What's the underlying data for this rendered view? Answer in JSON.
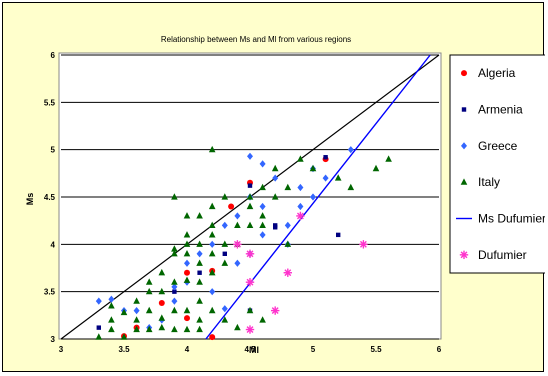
{
  "chart_data": {
    "type": "scatter",
    "title": "Relationship between Ms and Ml from various regions",
    "xlabel": "Ml",
    "ylabel": "Ms",
    "xlim": [
      3,
      6
    ],
    "ylim": [
      3,
      6
    ],
    "xticks": [
      "3",
      "3.5",
      "4",
      "4.5",
      "5",
      "5.5",
      "6"
    ],
    "yticks": [
      "3",
      "3.5",
      "4",
      "4.5",
      "5",
      "5.5",
      "6"
    ],
    "grid": "horizontal",
    "legend_position": "right",
    "series": [
      {
        "name": "Algeria",
        "marker": "circle",
        "color": "#ff0000",
        "points": [
          [
            3.5,
            3.03
          ],
          [
            3.6,
            3.12
          ],
          [
            3.8,
            3.38
          ],
          [
            4.0,
            3.22
          ],
          [
            4.0,
            3.7
          ],
          [
            4.2,
            3.72
          ],
          [
            4.2,
            3.02
          ],
          [
            4.35,
            4.4
          ],
          [
            4.5,
            4.65
          ],
          [
            5.1,
            4.9
          ]
        ]
      },
      {
        "name": "Armenia",
        "marker": "square",
        "color": "#000080",
        "points": [
          [
            3.3,
            3.12
          ],
          [
            4.1,
            3.7
          ],
          [
            4.3,
            3.9
          ],
          [
            4.7,
            4.18
          ],
          [
            4.7,
            4.2
          ],
          [
            4.5,
            4.62
          ],
          [
            5.2,
            4.1
          ],
          [
            5.1,
            4.92
          ],
          [
            4.5,
            3.3
          ],
          [
            3.9,
            3.5
          ]
        ]
      },
      {
        "name": "Greece",
        "marker": "diamond",
        "color": "#3366ff",
        "points": [
          [
            3.3,
            3.4
          ],
          [
            3.4,
            3.42
          ],
          [
            3.5,
            3.3
          ],
          [
            3.6,
            3.3
          ],
          [
            3.9,
            3.4
          ],
          [
            3.9,
            3.55
          ],
          [
            4.0,
            3.6
          ],
          [
            4.0,
            3.8
          ],
          [
            4.1,
            3.9
          ],
          [
            4.2,
            4.0
          ],
          [
            4.3,
            4.2
          ],
          [
            4.4,
            4.3
          ],
          [
            4.5,
            4.5
          ],
          [
            4.5,
            4.93
          ],
          [
            4.6,
            4.1
          ],
          [
            4.6,
            4.4
          ],
          [
            4.7,
            4.7
          ],
          [
            4.8,
            4.0
          ],
          [
            4.8,
            4.2
          ],
          [
            4.9,
            4.4
          ],
          [
            4.9,
            4.6
          ],
          [
            5.0,
            4.8
          ],
          [
            5.0,
            4.5
          ],
          [
            5.1,
            4.7
          ],
          [
            5.3,
            5.0
          ],
          [
            3.7,
            3.12
          ],
          [
            3.8,
            3.2
          ],
          [
            4.2,
            3.5
          ],
          [
            4.4,
            3.8
          ],
          [
            4.6,
            4.85
          ],
          [
            4.5,
            3.9
          ],
          [
            4.3,
            3.32
          ]
        ]
      },
      {
        "name": "Italy",
        "marker": "triangle",
        "color": "#006600",
        "points": [
          [
            3.3,
            3.02
          ],
          [
            3.4,
            3.1
          ],
          [
            3.5,
            3.02
          ],
          [
            3.6,
            3.1
          ],
          [
            3.7,
            3.1
          ],
          [
            3.8,
            3.12
          ],
          [
            3.9,
            3.1
          ],
          [
            4.0,
            3.1
          ],
          [
            4.1,
            3.1
          ],
          [
            3.4,
            3.2
          ],
          [
            3.5,
            3.28
          ],
          [
            3.6,
            3.2
          ],
          [
            3.7,
            3.3
          ],
          [
            3.8,
            3.22
          ],
          [
            3.9,
            3.3
          ],
          [
            4.0,
            3.3
          ],
          [
            4.1,
            3.4
          ],
          [
            4.2,
            3.3
          ],
          [
            3.4,
            3.35
          ],
          [
            3.6,
            3.4
          ],
          [
            3.7,
            3.5
          ],
          [
            3.8,
            3.5
          ],
          [
            3.9,
            3.6
          ],
          [
            4.0,
            3.62
          ],
          [
            4.1,
            3.6
          ],
          [
            4.2,
            3.7
          ],
          [
            3.7,
            3.6
          ],
          [
            3.8,
            3.7
          ],
          [
            3.9,
            3.9
          ],
          [
            4.0,
            3.9
          ],
          [
            4.1,
            4.0
          ],
          [
            4.2,
            4.2
          ],
          [
            4.3,
            4.0
          ],
          [
            3.9,
            4.5
          ],
          [
            4.0,
            4.1
          ],
          [
            4.0,
            4.3
          ],
          [
            4.1,
            4.3
          ],
          [
            4.2,
            4.4
          ],
          [
            4.3,
            4.5
          ],
          [
            4.1,
            3.8
          ],
          [
            4.2,
            3.9
          ],
          [
            4.3,
            3.8
          ],
          [
            4.4,
            4.2
          ],
          [
            4.4,
            4.0
          ],
          [
            4.5,
            4.2
          ],
          [
            4.5,
            4.4
          ],
          [
            4.6,
            4.3
          ],
          [
            4.6,
            4.6
          ],
          [
            4.7,
            4.5
          ],
          [
            4.7,
            4.8
          ],
          [
            4.8,
            4.6
          ],
          [
            4.8,
            4.0
          ],
          [
            4.9,
            4.9
          ],
          [
            5.0,
            4.8
          ],
          [
            5.2,
            4.7
          ],
          [
            5.3,
            4.6
          ],
          [
            5.5,
            4.8
          ],
          [
            5.6,
            4.9
          ],
          [
            4.2,
            5.0
          ],
          [
            4.5,
            4.5
          ],
          [
            4.6,
            3.2
          ],
          [
            4.4,
            3.12
          ],
          [
            4.3,
            3.2
          ],
          [
            4.0,
            4.0
          ],
          [
            3.9,
            3.95
          ],
          [
            4.2,
            4.1
          ],
          [
            4.6,
            4.2
          ],
          [
            4.5,
            3.3
          ],
          [
            4.1,
            3.2
          ]
        ]
      },
      {
        "name": "Ms Dufumier",
        "type": "line",
        "color": "#0000ff",
        "points": [
          [
            4.15,
            3.0
          ],
          [
            5.93,
            6.0
          ]
        ]
      },
      {
        "name": "Dufumier",
        "marker": "asterisk",
        "color": "#ff33cc",
        "points": [
          [
            4.4,
            4.0
          ],
          [
            4.5,
            3.9
          ],
          [
            4.5,
            3.6
          ],
          [
            4.5,
            3.1
          ],
          [
            4.7,
            3.3
          ],
          [
            4.8,
            3.7
          ],
          [
            4.9,
            4.3
          ],
          [
            5.4,
            4.0
          ]
        ]
      }
    ],
    "reference_line": {
      "type": "line",
      "color": "#000000",
      "points": [
        [
          3.0,
          3.0
        ],
        [
          6.0,
          6.0
        ]
      ]
    },
    "colors": {
      "frame_background": "#ffffcc",
      "plot_background": "#ffffff",
      "grid": "#000000"
    }
  }
}
